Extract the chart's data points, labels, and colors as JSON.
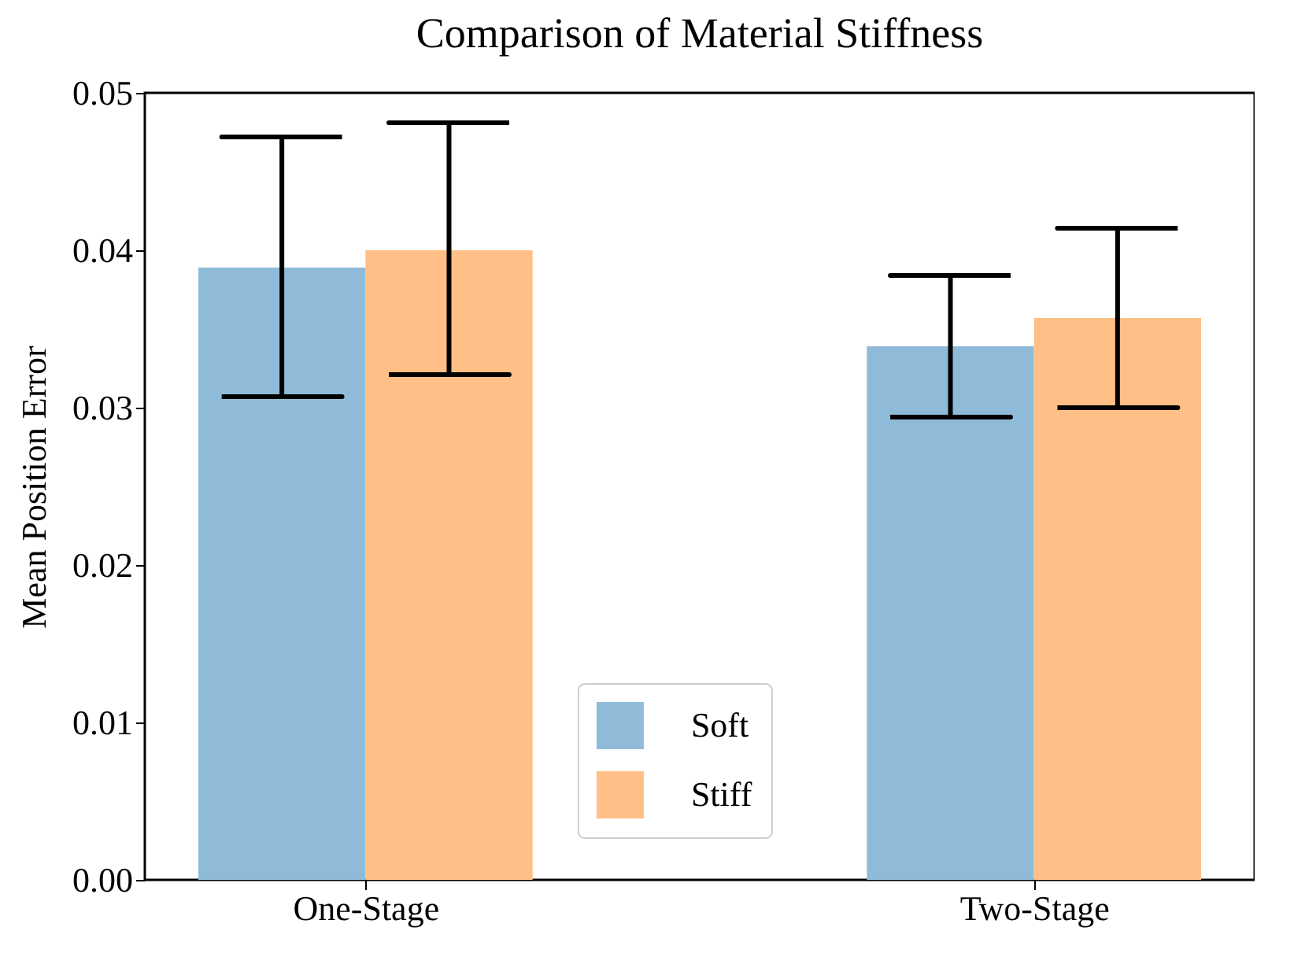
{
  "chart_data": {
    "type": "bar",
    "title": "Comparison of Material Stiffness",
    "ylabel": "Mean Position Error",
    "categories": [
      "One-Stage",
      "Two-Stage"
    ],
    "series": [
      {
        "name": "Soft",
        "color": "#8fbbd9",
        "values": [
          0.0389,
          0.0339
        ],
        "errors": [
          [
            0.0307,
            0.0472
          ],
          [
            0.0294,
            0.0384
          ]
        ]
      },
      {
        "name": "Stiff",
        "color": "#ffbf86",
        "values": [
          0.04,
          0.0357
        ],
        "errors": [
          [
            0.0321,
            0.0481
          ],
          [
            0.03,
            0.0414
          ]
        ]
      }
    ],
    "ylim": [
      0,
      0.05
    ],
    "yticks": [
      {
        "value": 0,
        "label": "0.00"
      },
      {
        "value": 0.01,
        "label": "0.01"
      },
      {
        "value": 0.02,
        "label": "0.02"
      },
      {
        "value": 0.03,
        "label": "0.03"
      },
      {
        "value": 0.04,
        "label": "0.04"
      },
      {
        "value": 0.05,
        "label": "0.05"
      }
    ],
    "grid": false,
    "legend": "bottom"
  }
}
